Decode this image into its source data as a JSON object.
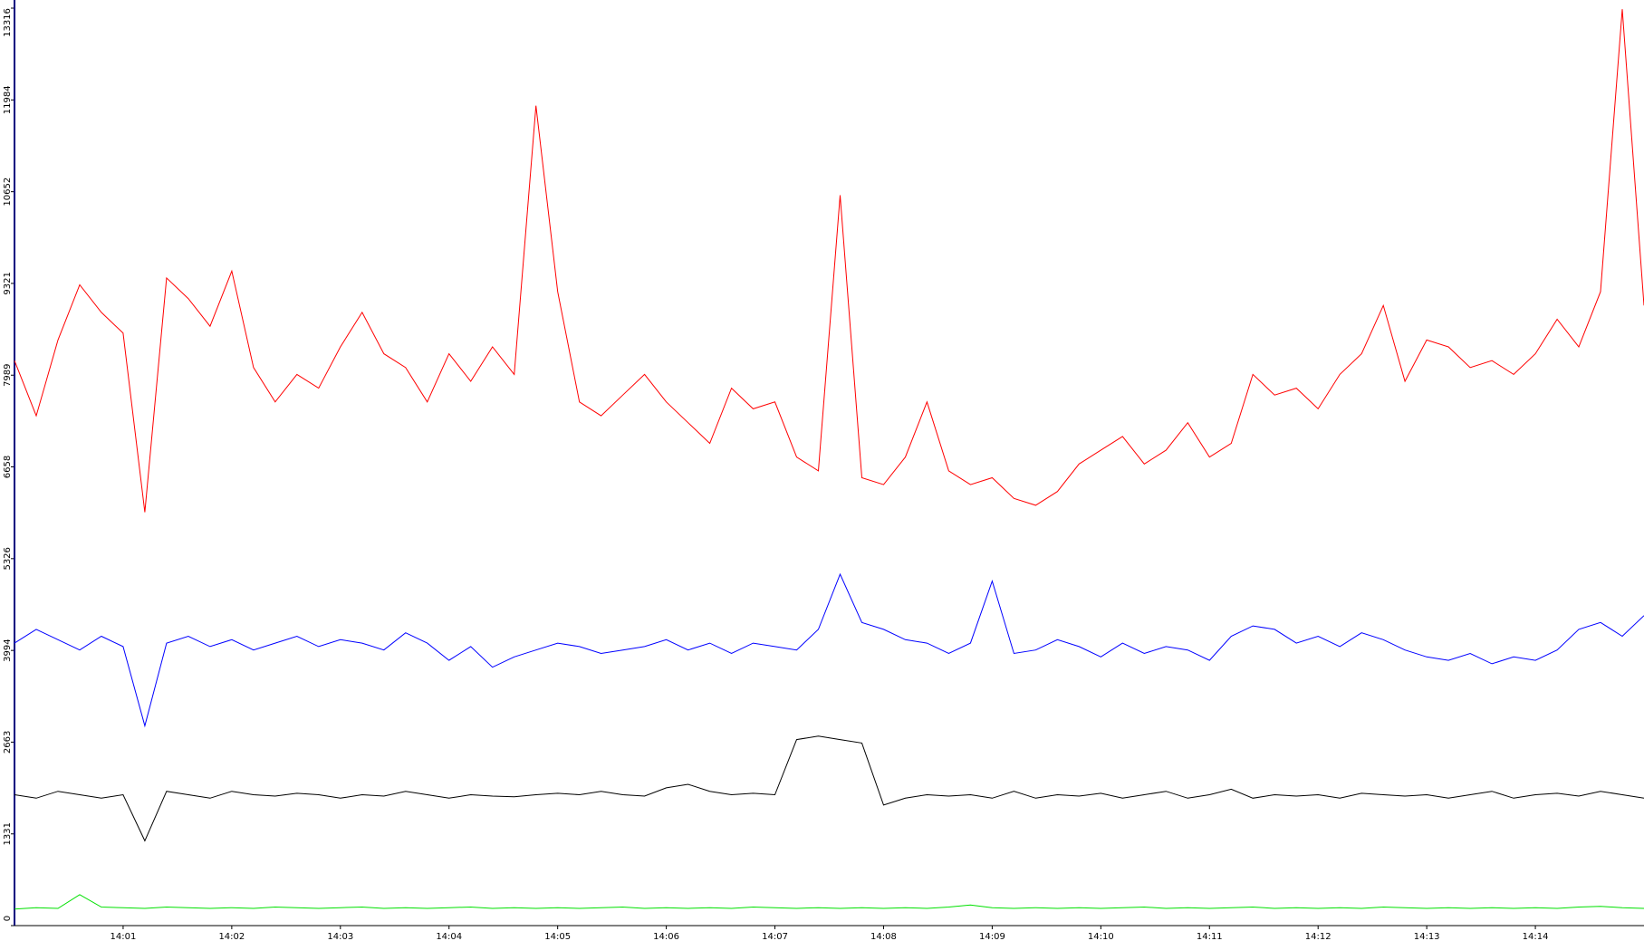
{
  "chart_data": {
    "type": "line",
    "xlim": [
      840,
      855
    ],
    "xticks": [
      {
        "value": 841,
        "label": "14:01"
      },
      {
        "value": 842,
        "label": "14:02"
      },
      {
        "value": 843,
        "label": "14:03"
      },
      {
        "value": 844,
        "label": "14:04"
      },
      {
        "value": 845,
        "label": "14:05"
      },
      {
        "value": 846,
        "label": "14:06"
      },
      {
        "value": 847,
        "label": "14:07"
      },
      {
        "value": 848,
        "label": "14:08"
      },
      {
        "value": 849,
        "label": "14:09"
      },
      {
        "value": 850,
        "label": "14:10"
      },
      {
        "value": 851,
        "label": "14:11"
      },
      {
        "value": 852,
        "label": "14:12"
      },
      {
        "value": 853,
        "label": "14:13"
      },
      {
        "value": 854,
        "label": "14:14"
      }
    ],
    "ylim": [
      0,
      13316
    ],
    "yticks": [
      0,
      1331,
      2663,
      3994,
      5326,
      6658,
      7989,
      9321,
      10652,
      11984,
      13316
    ],
    "x": [
      840,
      840.2,
      840.4,
      840.6,
      840.8,
      841,
      841.2,
      841.4,
      841.6,
      841.8,
      842,
      842.2,
      842.4,
      842.6,
      842.8,
      843,
      843.2,
      843.4,
      843.6,
      843.8,
      844,
      844.2,
      844.4,
      844.6,
      844.8,
      845,
      845.2,
      845.4,
      845.6,
      845.8,
      846,
      846.2,
      846.4,
      846.6,
      846.8,
      847,
      847.2,
      847.4,
      847.6,
      847.8,
      848,
      848.2,
      848.4,
      848.6,
      848.8,
      849,
      849.2,
      849.4,
      849.6,
      849.8,
      850,
      850.2,
      850.4,
      850.6,
      850.8,
      851,
      851.2,
      851.4,
      851.6,
      851.8,
      852,
      852.2,
      852.4,
      852.6,
      852.8,
      853,
      853.2,
      853.4,
      853.6,
      853.8,
      854,
      854.2,
      854.4,
      854.6,
      854.8,
      855
    ],
    "series": [
      {
        "color": "#ff0000",
        "values": [
          8200,
          7400,
          8500,
          9300,
          8900,
          8600,
          6000,
          9400,
          9100,
          8700,
          9500,
          8100,
          7600,
          8000,
          7800,
          8400,
          8900,
          8300,
          8100,
          7600,
          8300,
          7900,
          8400,
          8000,
          11900,
          9200,
          7600,
          7400,
          7700,
          8000,
          7600,
          7300,
          7000,
          7800,
          7500,
          7600,
          6800,
          6600,
          10600,
          6500,
          6400,
          6800,
          7600,
          6600,
          6400,
          6500,
          6200,
          6100,
          6300,
          6700,
          6900,
          7100,
          6700,
          6900,
          7300,
          6800,
          7000,
          8000,
          7700,
          7800,
          7500,
          8000,
          8300,
          9000,
          7900,
          8500,
          8400,
          8100,
          8200,
          8000,
          8300,
          8800,
          8400,
          9200,
          13300,
          9000
        ]
      },
      {
        "color": "#0000ff",
        "values": [
          4100,
          4300,
          4150,
          4000,
          4200,
          4050,
          2900,
          4100,
          4200,
          4050,
          4150,
          4000,
          4100,
          4200,
          4050,
          4150,
          4100,
          4000,
          4250,
          4100,
          3850,
          4050,
          3750,
          3900,
          4000,
          4100,
          4050,
          3950,
          4000,
          4050,
          4150,
          4000,
          4100,
          3950,
          4100,
          4050,
          4000,
          4300,
          5100,
          4400,
          4300,
          4150,
          4100,
          3950,
          4100,
          5000,
          3950,
          4000,
          4150,
          4050,
          3900,
          4100,
          3950,
          4050,
          4000,
          3850,
          4200,
          4350,
          4300,
          4100,
          4200,
          4050,
          4250,
          4150,
          4000,
          3900,
          3850,
          3950,
          3800,
          3900,
          3850,
          4000,
          4300,
          4400,
          4200,
          4500
        ]
      },
      {
        "color": "#000000",
        "values": [
          1900,
          1850,
          1950,
          1900,
          1850,
          1900,
          1230,
          1950,
          1900,
          1850,
          1950,
          1900,
          1880,
          1920,
          1900,
          1850,
          1900,
          1880,
          1950,
          1900,
          1850,
          1900,
          1880,
          1870,
          1900,
          1920,
          1900,
          1950,
          1900,
          1880,
          2000,
          2050,
          1950,
          1900,
          1920,
          1900,
          2700,
          2750,
          2700,
          2650,
          1750,
          1850,
          1900,
          1880,
          1900,
          1850,
          1950,
          1850,
          1900,
          1880,
          1920,
          1850,
          1900,
          1950,
          1850,
          1900,
          1980,
          1850,
          1900,
          1880,
          1900,
          1850,
          1920,
          1900,
          1880,
          1900,
          1850,
          1900,
          1950,
          1850,
          1900,
          1920,
          1880,
          1950,
          1900,
          1850
        ]
      },
      {
        "color": "#00e000",
        "values": [
          240,
          260,
          250,
          450,
          270,
          260,
          250,
          270,
          260,
          250,
          260,
          250,
          270,
          260,
          250,
          260,
          270,
          250,
          260,
          250,
          260,
          270,
          250,
          260,
          250,
          260,
          250,
          260,
          270,
          250,
          260,
          250,
          260,
          250,
          270,
          260,
          250,
          260,
          250,
          260,
          250,
          260,
          250,
          270,
          300,
          260,
          250,
          260,
          250,
          260,
          250,
          260,
          270,
          250,
          260,
          250,
          260,
          270,
          250,
          260,
          250,
          260,
          250,
          270,
          260,
          250,
          260,
          250,
          260,
          250,
          260,
          250,
          270,
          280,
          260,
          250
        ]
      }
    ]
  }
}
